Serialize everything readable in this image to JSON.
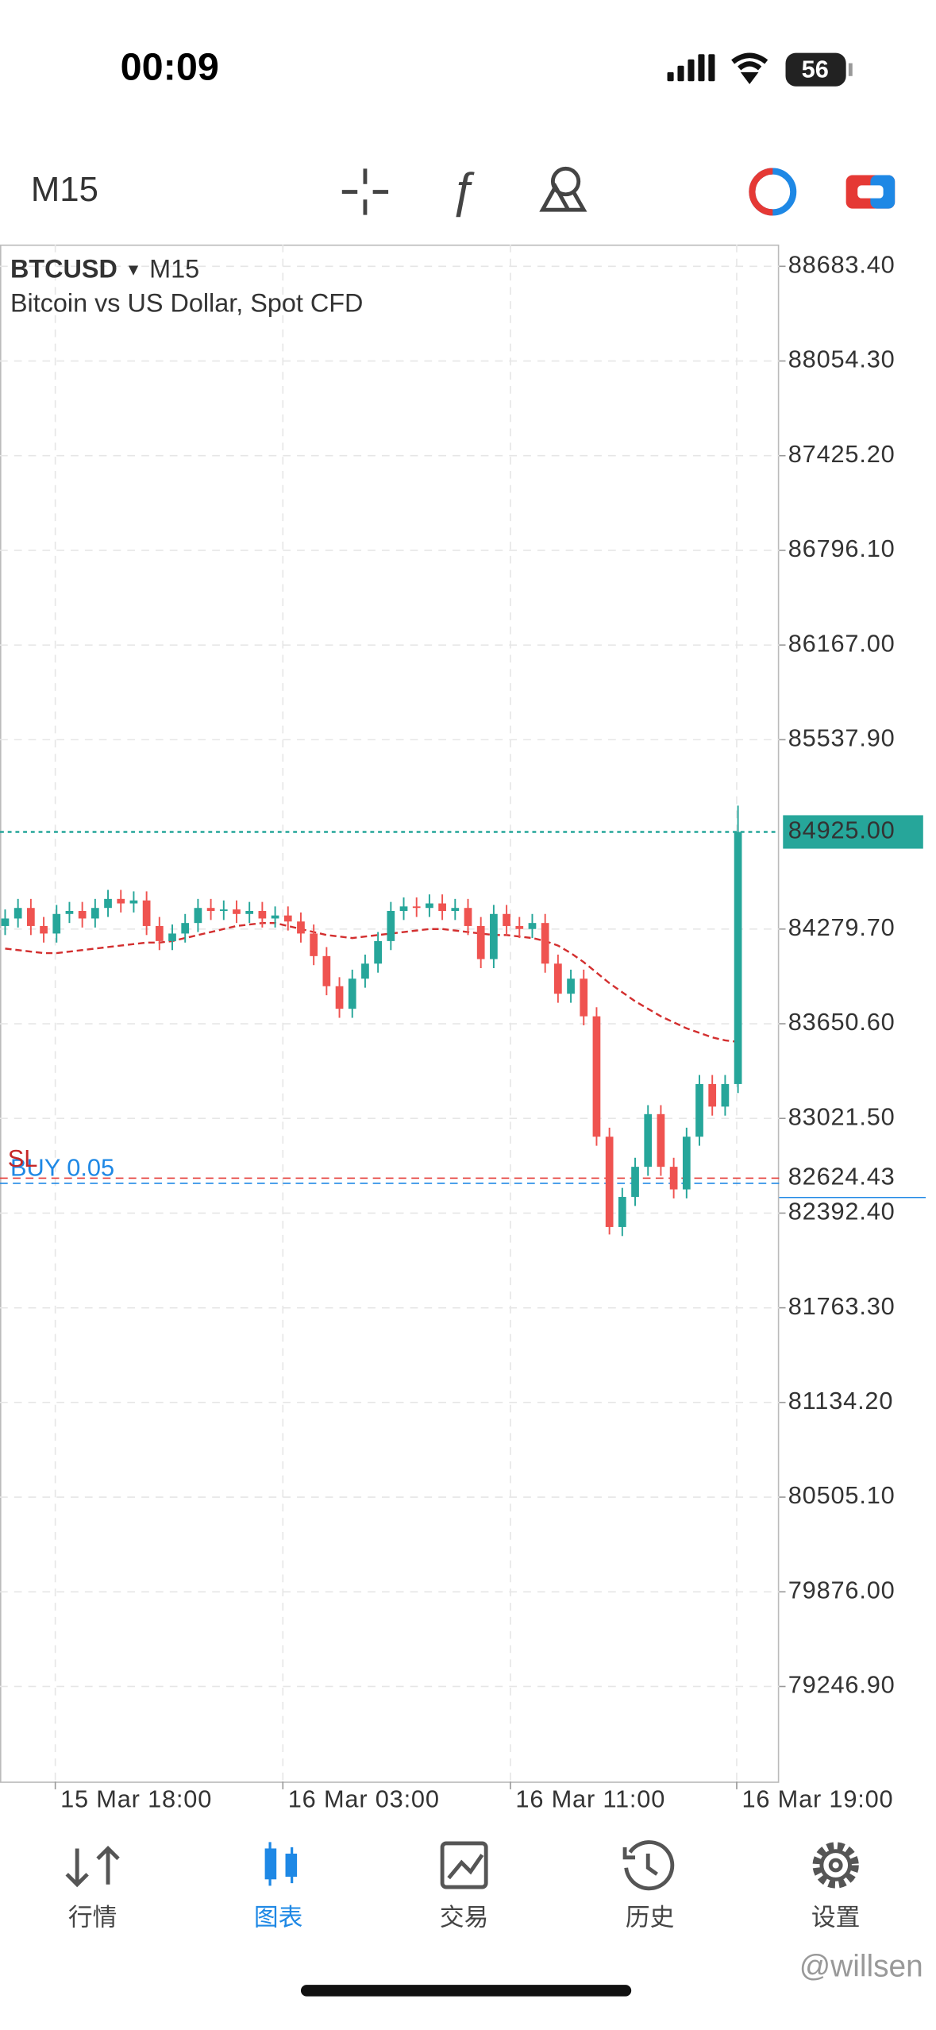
{
  "status_bar": {
    "time": "00:09",
    "battery": "56"
  },
  "toolbar": {
    "timeframe": "M15"
  },
  "chart_data": {
    "type": "candlestick",
    "symbol": "BTCUSD",
    "timeframe": "M15",
    "description": "Bitcoin vs US Dollar, Spot CFD",
    "up_color": "#26a69a",
    "down_color": "#ef5350",
    "ma_color": "#d32f2f",
    "open": [
      84300,
      84350,
      84420,
      84300,
      84250,
      84380,
      84400,
      84350,
      84420,
      84480,
      84450,
      84470,
      84300,
      84200,
      84250,
      84320,
      84420,
      84400,
      84410,
      84380,
      84400,
      84350,
      84370,
      84330,
      84250,
      84100,
      83900,
      83750,
      83950,
      84050,
      84200,
      84400,
      84430,
      84420,
      84450,
      84400,
      84420,
      84300,
      84080,
      84380,
      84300,
      84280,
      84320,
      84050,
      83850,
      83950,
      83700,
      82900,
      82300,
      82500,
      82700,
      83050,
      82700,
      82550,
      82900,
      83250,
      83100,
      83250
    ],
    "high": [
      84410,
      84480,
      84480,
      84360,
      84440,
      84460,
      84460,
      84480,
      84540,
      84540,
      84530,
      84530,
      84360,
      84310,
      84380,
      84480,
      84480,
      84470,
      84470,
      84460,
      84460,
      84430,
      84430,
      84390,
      84310,
      84160,
      83960,
      84010,
      84110,
      84260,
      84460,
      84490,
      84490,
      84510,
      84510,
      84480,
      84480,
      84360,
      84440,
      84440,
      84360,
      84380,
      84380,
      84110,
      84010,
      84010,
      83760,
      82960,
      82560,
      82760,
      83110,
      83110,
      82760,
      82960,
      83310,
      83310,
      83310,
      85100
    ],
    "low": [
      84240,
      84290,
      84240,
      84190,
      84190,
      84320,
      84290,
      84290,
      84360,
      84390,
      84390,
      84240,
      84140,
      84140,
      84190,
      84260,
      84340,
      84340,
      84320,
      84320,
      84290,
      84290,
      84270,
      84190,
      84040,
      83840,
      83690,
      83690,
      83890,
      83990,
      84140,
      84340,
      84360,
      84360,
      84340,
      84340,
      84240,
      84020,
      84020,
      84240,
      84220,
      84220,
      83990,
      83790,
      83790,
      83640,
      82840,
      82250,
      82240,
      82440,
      82640,
      82640,
      82490,
      82490,
      82840,
      83040,
      83040,
      83190
    ],
    "close": [
      84350,
      84420,
      84300,
      84250,
      84380,
      84400,
      84350,
      84420,
      84480,
      84450,
      84470,
      84300,
      84200,
      84250,
      84320,
      84420,
      84400,
      84410,
      84380,
      84400,
      84350,
      84370,
      84330,
      84250,
      84100,
      83900,
      83750,
      83950,
      84050,
      84200,
      84400,
      84430,
      84420,
      84450,
      84400,
      84420,
      84300,
      84080,
      84380,
      84300,
      84280,
      84320,
      84050,
      83850,
      83950,
      83700,
      82900,
      82300,
      82500,
      82700,
      83050,
      82700,
      82550,
      82900,
      83250,
      83100,
      83250,
      84925
    ],
    "ma": [
      84150,
      84140,
      84130,
      84120,
      84120,
      84130,
      84140,
      84150,
      84160,
      84170,
      84180,
      84190,
      84190,
      84200,
      84220,
      84240,
      84260,
      84280,
      84300,
      84310,
      84320,
      84320,
      84300,
      84280,
      84260,
      84240,
      84230,
      84220,
      84230,
      84240,
      84250,
      84260,
      84270,
      84280,
      84280,
      84270,
      84260,
      84250,
      84240,
      84240,
      84230,
      84220,
      84200,
      84170,
      84120,
      84060,
      83990,
      83920,
      83860,
      83800,
      83750,
      83700,
      83660,
      83620,
      83590,
      83560,
      83540,
      83530
    ],
    "ylim": [
      78615,
      88828
    ],
    "yticks": [
      {
        "value": 88683.4,
        "label": "88683.40"
      },
      {
        "value": 88054.3,
        "label": "88054.30"
      },
      {
        "value": 87425.2,
        "label": "87425.20"
      },
      {
        "value": 86796.1,
        "label": "86796.10"
      },
      {
        "value": 86167,
        "label": "86167.00"
      },
      {
        "value": 85537.9,
        "label": "85537.90"
      },
      {
        "value": 84279.7,
        "label": "84279.70"
      },
      {
        "value": 83650.6,
        "label": "83650.60"
      },
      {
        "value": 83021.5,
        "label": "83021.50"
      },
      {
        "value": 82392.4,
        "label": "82392.40"
      },
      {
        "value": 81763.3,
        "label": "81763.30"
      },
      {
        "value": 81134.2,
        "label": "81134.20"
      },
      {
        "value": 80505.1,
        "label": "80505.10"
      },
      {
        "value": 79876,
        "label": "79876.00"
      },
      {
        "value": 79246.9,
        "label": "79246.90"
      }
    ],
    "xticks": [
      "15 Mar 18:00",
      "16 Mar 03:00",
      "16 Mar 11:00",
      "16 Mar 19:00"
    ],
    "current_price": {
      "value": 84925,
      "label": "84925.00"
    },
    "sl_level": {
      "value": 82624.43,
      "label": "82624.43",
      "text": "SL"
    },
    "order": {
      "value": 82590,
      "text": "BUY 0.05"
    }
  },
  "tabs": [
    "行情",
    "图表",
    "交易",
    "历史",
    "设置"
  ],
  "watermark": "@willsen"
}
